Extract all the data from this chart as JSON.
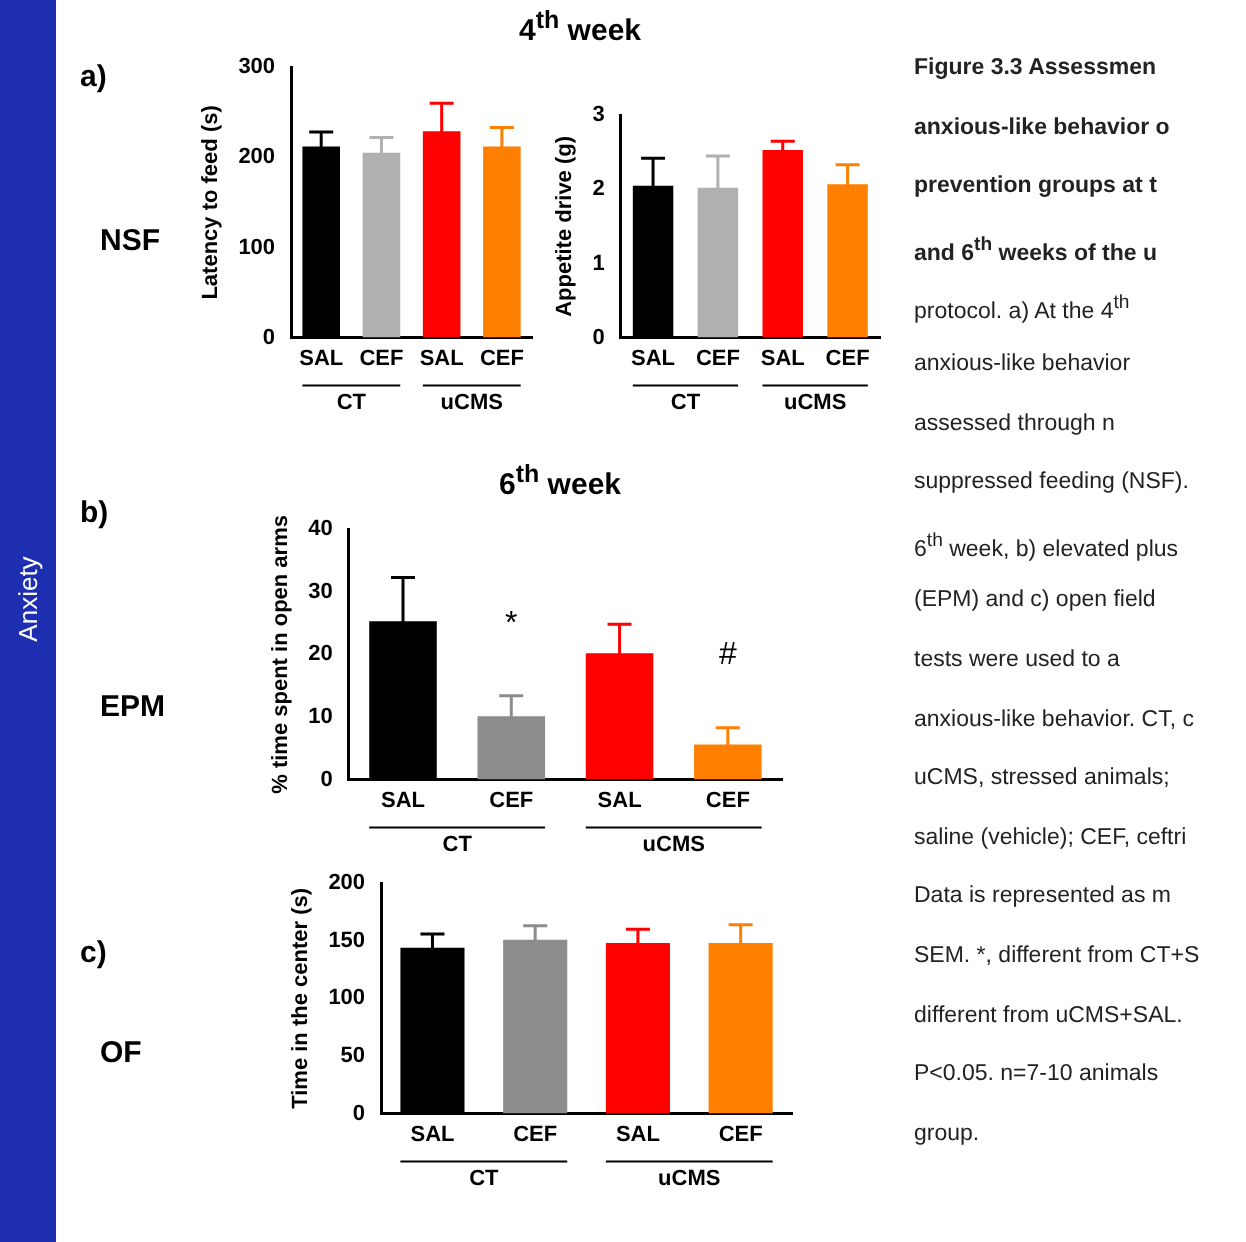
{
  "chart_data": [
    {
      "type": "bar",
      "title": "4$^{th}$ week",
      "ylabel": "Latency to feed (s)",
      "categories": [
        "SAL",
        "CEF",
        "SAL",
        "CEF"
      ],
      "values": [
        212,
        205,
        229,
        212
      ],
      "errors": [
        16,
        17,
        31,
        21
      ],
      "colors": [
        "#000000",
        "#b0b0b0",
        "#ff0000",
        "#ff8000"
      ],
      "ylim": [
        0,
        300
      ],
      "yticks": [
        0,
        100,
        200,
        300
      ],
      "grid": false,
      "legend": false,
      "annotations": [
        "CT",
        "uCMS"
      ]
    },
    {
      "type": "bar",
      "ylabel": "Appetite drive (g)",
      "categories": [
        "SAL",
        "CEF",
        "SAL",
        "CEF"
      ],
      "values": [
        2.05,
        2.02,
        2.53,
        2.07
      ],
      "errors": [
        0.37,
        0.43,
        0.12,
        0.26
      ],
      "colors": [
        "#000000",
        "#b0b0b0",
        "#ff0000",
        "#ff8000"
      ],
      "ylim": [
        0,
        3
      ],
      "yticks": [
        0,
        1,
        2,
        3
      ],
      "grid": false,
      "legend": false,
      "annotations": [
        "CT",
        "uCMS"
      ]
    },
    {
      "type": "bar",
      "title": "6$^{th}$ week",
      "ylabel": "% time spent in open arms",
      "categories": [
        "SAL",
        "CEF",
        "SAL",
        "CEF"
      ],
      "values": [
        25.3,
        10.1,
        20.2,
        5.6
      ],
      "errors": [
        7,
        3.3,
        4.6,
        2.7
      ],
      "colors": [
        "#000000",
        "#8c8c8c",
        "#ff0000",
        "#ff8000"
      ],
      "ylim": [
        0,
        40
      ],
      "yticks": [
        0,
        10,
        20,
        30,
        40
      ],
      "grid": false,
      "legend": false,
      "annotations": [
        "CT",
        "uCMS",
        "*",
        "#"
      ]
    },
    {
      "type": "bar",
      "ylabel": "Time in the center (s)",
      "categories": [
        "SAL",
        "CEF",
        "SAL",
        "CEF"
      ],
      "values": [
        144,
        151,
        148,
        148
      ],
      "errors": [
        12,
        12,
        12,
        16
      ],
      "colors": [
        "#000000",
        "#8c8c8c",
        "#ff0000",
        "#ff8000"
      ],
      "ylim": [
        0,
        200
      ],
      "yticks": [
        0,
        50,
        100,
        150,
        200
      ],
      "grid": false,
      "legend": false,
      "annotations": [
        "CT",
        "uCMS"
      ]
    },
    {
      "type": "other",
      "annotations": [
        "Anxiety",
        "a)",
        "NSF",
        "b)",
        "EPM",
        "c)",
        "OF",
        "Figure 3.3 Assessmen",
        "anxious-like behavior o",
        "prevention groups at t",
        "and 6$^{th}$ weeks of the u",
        "protocol. a) At the 4$^{th}$",
        "anxious-like behavior",
        "assessed through n",
        "suppressed feeding (NSF).",
        "6$^{th}$ week, b) elevated plus",
        "(EPM) and c) open field",
        "tests were used to a",
        "anxious-like behavior. CT, c",
        "uCMS, stressed animals;",
        "saline (vehicle); CEF, ceftri",
        "Data is represented as m",
        "SEM. *, different from CT+S",
        "different from uCMS+SAL.",
        "P<0.05. n=7-10 animals",
        "group."
      ]
    }
  ]
}
